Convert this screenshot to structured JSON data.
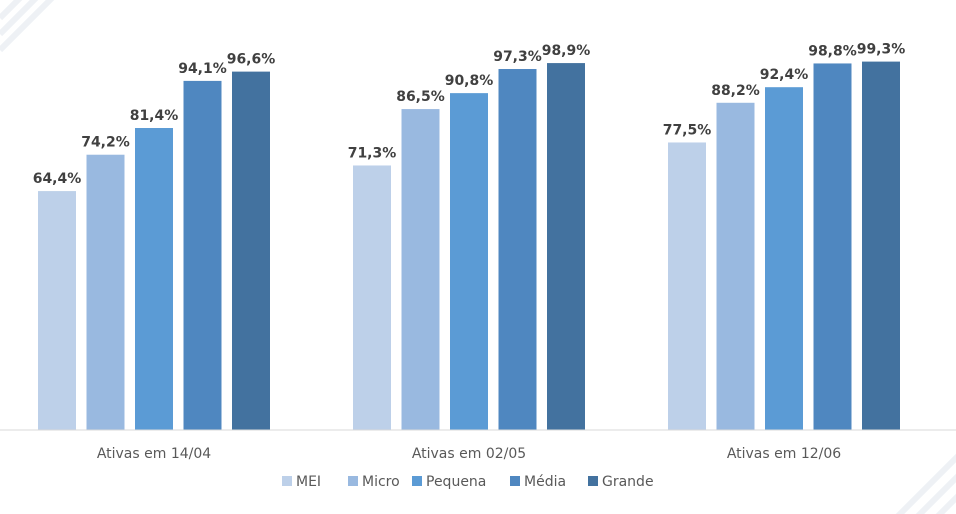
{
  "chart_data": {
    "type": "bar",
    "categories": [
      "Ativas em 14/04",
      "Ativas em 02/05",
      "Ativas em 12/06"
    ],
    "series": [
      {
        "name": "MEI",
        "color": "#bdd0e9",
        "values": [
          64.4,
          71.3,
          77.5
        ],
        "labels": [
          "64,4%",
          "71,3%",
          "77,5%"
        ]
      },
      {
        "name": "Micro",
        "color": "#99b9e0",
        "values": [
          74.2,
          86.5,
          88.2
        ],
        "labels": [
          "74,2%",
          "86,5%",
          "88,2%"
        ]
      },
      {
        "name": "Pequena",
        "color": "#5b9bd5",
        "values": [
          81.4,
          90.8,
          92.4
        ],
        "labels": [
          "81,4%",
          "90,8%",
          "92,4%"
        ]
      },
      {
        "name": "Média",
        "color": "#4f87c0",
        "values": [
          94.1,
          97.3,
          98.8
        ],
        "labels": [
          "94,1%",
          "97,3%",
          "98,8%"
        ]
      },
      {
        "name": "Grande",
        "color": "#43729f",
        "values": [
          96.6,
          98.9,
          99.3
        ],
        "labels": [
          "96,6%",
          "98,9%",
          "99,3%"
        ]
      }
    ],
    "legend_position": "bottom",
    "grid": false
  }
}
